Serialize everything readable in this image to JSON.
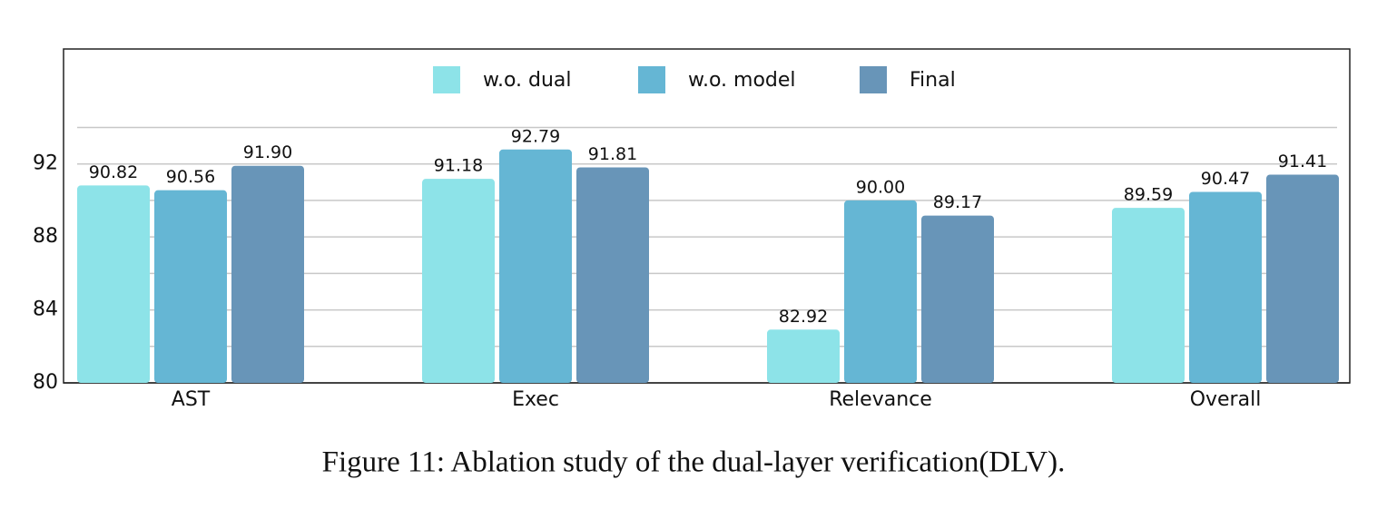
{
  "chart_data": {
    "type": "bar",
    "caption": "Figure 11: Ablation study of the dual-layer verification(DLV).",
    "categories": [
      "AST",
      "Exec",
      "Relevance",
      "Overall"
    ],
    "series": [
      {
        "name": "w.o. dual",
        "color": "#8de3e8",
        "values": [
          90.82,
          91.18,
          82.92,
          89.59
        ]
      },
      {
        "name": "w.o. model",
        "color": "#65b6d4",
        "values": [
          90.56,
          92.79,
          90.0,
          90.47
        ],
        "value_labels": [
          "90.56",
          "92.79",
          "90.00",
          "90.47"
        ]
      },
      {
        "name": "Final",
        "color": "#6895b8",
        "values": [
          91.9,
          91.81,
          89.17,
          91.41
        ],
        "value_labels": [
          "91.90",
          "91.81",
          "89.17",
          "91.41"
        ]
      }
    ],
    "ylim": [
      80,
      98.3
    ],
    "yticks": [
      80,
      84,
      88,
      92
    ],
    "minor_yticks": [
      82,
      86,
      90,
      94
    ],
    "grid": true,
    "legend": "top"
  }
}
